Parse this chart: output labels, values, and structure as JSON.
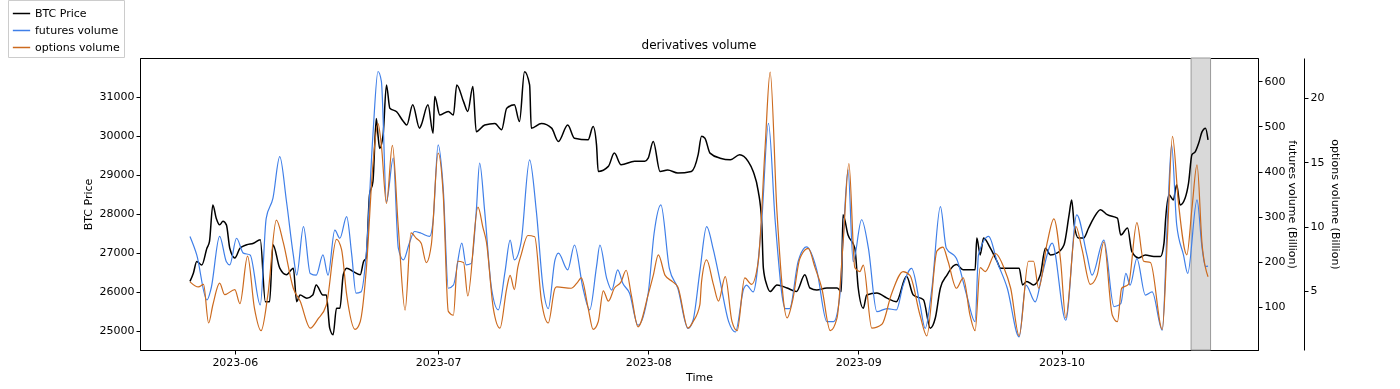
{
  "chart_data": {
    "type": "line",
    "title": "derivatives volume",
    "xlabel": "Time",
    "ylabel": "BTC Price",
    "y2label": "futures volume (Billion)",
    "y3label": "options volume (Billion)",
    "xlim": [
      "2023-05-18",
      "2023-10-30"
    ],
    "xticks": [
      "2023-06",
      "2023-07",
      "2023-08",
      "2023-09",
      "2023-10"
    ],
    "ylim": [
      24500,
      31990
    ],
    "yticks": [
      25000,
      26000,
      27000,
      28000,
      29000,
      30000,
      31000
    ],
    "y2lim": [
      4,
      652
    ],
    "y2ticks": [
      100,
      200,
      300,
      400,
      500,
      600
    ],
    "y3lim": [
      0.4,
      23.1
    ],
    "y3ticks": [
      5,
      10,
      15,
      20
    ],
    "legend": "top left",
    "grid": false,
    "bands": [
      {
        "axis": "x",
        "from": "2023-10-20T03:00",
        "to": "2023-10-23T00:00",
        "color": "#d9d9d9"
      }
    ],
    "series": [
      {
        "name": "BTC Price",
        "color": "#000000",
        "axis": "y",
        "x": [
          "2023-05-25T09:00",
          "2023-05-25T21:00",
          "2023-05-26T09:00",
          "2023-05-27T03:00",
          "2023-05-27T21:00",
          "2023-05-28T06:00",
          "2023-05-28T18:00",
          "2023-05-29T06:00",
          "2023-05-29T18:00",
          "2023-05-30T06:00",
          "2023-05-30T18:00",
          "2023-05-31T06:00",
          "2023-06-01T00:00",
          "2023-06-01T18:00",
          "2023-06-02T18:00",
          "2023-06-03T18:00",
          "2023-06-04T18:00",
          "2023-06-05T12:00",
          "2023-06-06T03:00",
          "2023-06-06T15:00",
          "2023-06-07T15:00",
          "2023-06-08T15:00",
          "2023-06-09T15:00",
          "2023-06-10T03:00",
          "2023-06-10T15:00",
          "2023-06-11T15:00",
          "2023-06-12T12:00",
          "2023-06-13T00:00",
          "2023-06-14T00:00",
          "2023-06-14T12:00",
          "2023-06-15T00:00",
          "2023-06-15T12:00",
          "2023-06-16T00:00",
          "2023-06-16T12:00",
          "2023-06-17T00:00",
          "2023-06-17T12:00",
          "2023-06-18T12:00",
          "2023-06-19T12:00",
          "2023-06-20T00:00",
          "2023-06-20T09:00",
          "2023-06-20T21:00",
          "2023-06-21T09:00",
          "2023-06-21T21:00",
          "2023-06-22T03:00",
          "2023-06-22T09:00",
          "2023-06-22T21:00",
          "2023-06-23T09:00",
          "2023-06-23T21:00",
          "2023-06-24T21:00",
          "2023-06-25T21:00",
          "2023-06-26T09:00",
          "2023-06-27T06:00",
          "2023-06-28T06:00",
          "2023-06-28T12:00",
          "2023-06-29T12:00",
          "2023-06-30T06:00",
          "2023-06-30T12:00",
          "2023-07-01T06:00",
          "2023-07-02T12:00",
          "2023-07-03T06:00",
          "2023-07-03T18:00",
          "2023-07-04T18:00",
          "2023-07-05T09:00",
          "2023-07-06T03:00",
          "2023-07-06T15:00",
          "2023-07-07T21:00",
          "2023-07-09T09:00",
          "2023-07-10T09:00",
          "2023-07-11T03:00",
          "2023-07-12T06:00",
          "2023-07-13T00:00",
          "2023-07-13T18:00",
          "2023-07-14T12:00",
          "2023-07-14T18:00",
          "2023-07-16T06:00",
          "2023-07-17T18:00",
          "2023-07-18T18:00",
          "2023-07-20T03:00",
          "2023-07-21T03:00",
          "2023-07-23T03:00",
          "2023-07-23T21:00",
          "2023-07-24T09:00",
          "2023-07-24T15:00",
          "2023-07-26T03:00",
          "2023-07-27T00:00",
          "2023-07-28T00:00",
          "2023-07-30T00:00",
          "2023-07-31T12:00",
          "2023-08-01T00:00",
          "2023-08-01T18:00",
          "2023-08-02T18:00",
          "2023-08-03T21:00",
          "2023-08-05T09:00",
          "2023-08-07T09:00",
          "2023-08-08T09:00",
          "2023-08-08T21:00",
          "2023-08-09T09:00",
          "2023-08-10T03:00",
          "2023-08-11T15:00",
          "2023-08-13T03:00",
          "2023-08-14T12:00",
          "2023-08-15T18:00",
          "2023-08-16T12:00",
          "2023-08-17T06:00",
          "2023-08-17T18:00",
          "2023-08-18T00:00",
          "2023-08-18T12:00",
          "2023-08-19T00:00",
          "2023-08-20T00:00",
          "2023-08-21T12:00",
          "2023-08-22T21:00",
          "2023-08-24T03:00",
          "2023-08-24T21:00",
          "2023-08-25T21:00",
          "2023-08-27T09:00",
          "2023-08-28T21:00",
          "2023-08-29T12:00",
          "2023-08-29T18:00",
          "2023-08-30T12:00",
          "2023-08-31T12:00",
          "2023-09-01T00:00",
          "2023-09-01T18:00",
          "2023-09-02T06:00",
          "2023-09-03T18:00",
          "2023-09-05T06:00",
          "2023-09-06T15:00",
          "2023-09-08T03:00",
          "2023-09-09T03:00",
          "2023-09-10T15:00",
          "2023-09-11T15:00",
          "2023-09-12T09:00",
          "2023-09-13T03:00",
          "2023-09-14T03:00",
          "2023-09-14T18:00",
          "2023-09-15T12:00",
          "2023-09-16T12:00",
          "2023-09-18T06:00",
          "2023-09-18T12:00",
          "2023-09-19T00:00",
          "2023-09-19T12:00",
          "2023-09-20T12:00",
          "2023-09-21T12:00",
          "2023-09-22T00:00",
          "2023-09-23T12:00",
          "2023-09-24T18:00",
          "2023-09-25T06:00",
          "2023-09-25T21:00",
          "2023-09-26T21:00",
          "2023-09-27T21:00",
          "2023-09-28T15:00",
          "2023-09-29T09:00",
          "2023-09-30T09:00",
          "2023-10-01T09:00",
          "2023-10-02T03:00",
          "2023-10-02T12:00",
          "2023-10-02T21:00",
          "2023-10-03T12:00",
          "2023-10-04T06:00",
          "2023-10-05T00:00",
          "2023-10-05T18:00",
          "2023-10-06T18:00",
          "2023-10-07T18:00",
          "2023-10-09T06:00",
          "2023-10-09T18:00",
          "2023-10-10T18:00",
          "2023-10-11T09:00",
          "2023-10-12T09:00",
          "2023-10-13T09:00",
          "2023-10-14T15:00",
          "2023-10-15T15:00",
          "2023-10-16T03:00",
          "2023-10-16T09:00",
          "2023-10-16T21:00",
          "2023-10-17T12:00",
          "2023-10-18T00:00",
          "2023-10-18T12:00",
          "2023-10-19T06:00",
          "2023-10-19T18:00",
          "2023-10-20T06:00",
          "2023-10-20T18:00",
          "2023-10-21T06:00",
          "2023-10-21T18:00",
          "2023-10-22T06:00",
          "2023-10-22T15:00"
        ],
        "values": [
          26260,
          26470,
          26770,
          26680,
          27110,
          27280,
          28220,
          27880,
          27710,
          27800,
          27710,
          27110,
          26860,
          27110,
          27200,
          27240,
          27330,
          25740,
          25740,
          27200,
          26600,
          26430,
          26600,
          25740,
          25910,
          25830,
          25910,
          26170,
          25910,
          25910,
          25060,
          24890,
          25570,
          25570,
          26430,
          26600,
          26510,
          26430,
          26770,
          26860,
          28480,
          28820,
          30440,
          30010,
          29670,
          30010,
          31300,
          30700,
          30610,
          30360,
          30270,
          30790,
          30190,
          30270,
          30790,
          30060,
          31000,
          30530,
          30620,
          30530,
          31300,
          30870,
          30620,
          31260,
          30100,
          30270,
          30310,
          30150,
          30700,
          30790,
          30360,
          31640,
          31300,
          30190,
          30310,
          30190,
          29850,
          30270,
          29930,
          29890,
          30230,
          29760,
          29080,
          29210,
          29550,
          29250,
          29340,
          29340,
          29420,
          29850,
          29080,
          29120,
          29040,
          29080,
          29510,
          29980,
          29930,
          29550,
          29420,
          29380,
          29510,
          29340,
          29080,
          28570,
          27800,
          26600,
          26170,
          26000,
          26170,
          26090,
          26000,
          26430,
          26090,
          26040,
          26090,
          26090,
          26000,
          27970,
          27450,
          27110,
          26090,
          25570,
          25910,
          25960,
          25830,
          25740,
          26390,
          25910,
          25790,
          25060,
          25320,
          26090,
          26430,
          26600,
          26690,
          26560,
          26560,
          27370,
          26940,
          27370,
          27110,
          26770,
          26600,
          26600,
          26600,
          26170,
          26260,
          26170,
          26430,
          27110,
          26940,
          26990,
          27200,
          27970,
          28350,
          27710,
          27370,
          27370,
          27630,
          27880,
          28100,
          27970,
          27880,
          27450,
          27630,
          27030,
          26860,
          26940,
          26900,
          26900,
          27240,
          27880,
          28480,
          28350,
          28740,
          28220,
          28400,
          28780,
          29510,
          29590,
          29810,
          30100,
          30190,
          29890
        ]
      },
      {
        "name": "futures volume",
        "color": "#3f7fe8",
        "axis": "y2",
        "x": [
          "2023-05-25T09:00",
          "2023-05-26T09:00",
          "2023-05-27T21:00",
          "2023-05-28T12:00",
          "2023-05-29T18:00",
          "2023-05-30T18:00",
          "2023-05-31T06:00",
          "2023-06-01T06:00",
          "2023-06-02T06:00",
          "2023-06-03T06:00",
          "2023-06-04T18:00",
          "2023-06-05T15:00",
          "2023-06-06T15:00",
          "2023-06-07T15:00",
          "2023-06-08T15:00",
          "2023-06-09T15:00",
          "2023-06-10T03:00",
          "2023-06-11T03:00",
          "2023-06-12T03:00",
          "2023-06-13T00:00",
          "2023-06-14T00:00",
          "2023-06-14T18:00",
          "2023-06-15T18:00",
          "2023-06-16T12:00",
          "2023-06-17T12:00",
          "2023-06-18T06:00",
          "2023-06-18T21:00",
          "2023-06-19T15:00",
          "2023-06-20T09:00",
          "2023-06-21T09:00",
          "2023-06-22T03:00",
          "2023-06-22T15:00",
          "2023-06-23T09:00",
          "2023-06-24T09:00",
          "2023-06-25T03:00",
          "2023-06-25T21:00",
          "2023-06-26T18:00",
          "2023-06-27T12:00",
          "2023-06-28T12:00",
          "2023-06-29T18:00",
          "2023-06-30T06:00",
          "2023-07-01T00:00",
          "2023-07-01T18:00",
          "2023-07-02T12:00",
          "2023-07-03T06:00",
          "2023-07-04T12:00",
          "2023-07-05T03:00",
          "2023-07-05T21:00",
          "2023-07-06T15:00",
          "2023-07-07T03:00",
          "2023-07-07T21:00",
          "2023-07-08T21:00",
          "2023-07-09T21:00",
          "2023-07-10T21:00",
          "2023-07-11T15:00",
          "2023-07-12T06:00",
          "2023-07-13T06:00",
          "2023-07-14T12:00",
          "2023-07-15T12:00",
          "2023-07-16T12:00",
          "2023-07-17T06:00",
          "2023-07-18T06:00",
          "2023-07-18T18:00",
          "2023-07-20T03:00",
          "2023-07-21T03:00",
          "2023-07-22T09:00",
          "2023-07-23T09:00",
          "2023-07-24T09:00",
          "2023-07-24T21:00",
          "2023-07-25T21:00",
          "2023-07-26T15:00",
          "2023-07-27T12:00",
          "2023-07-28T06:00",
          "2023-07-29T06:00",
          "2023-07-30T12:00",
          "2023-08-01T00:00",
          "2023-08-01T21:00",
          "2023-08-02T21:00",
          "2023-08-04T03:00",
          "2023-08-05T09:00",
          "2023-08-06T21:00",
          "2023-08-07T15:00",
          "2023-08-08T15:00",
          "2023-08-09T15:00",
          "2023-08-10T15:00",
          "2023-08-11T15:00",
          "2023-08-12T21:00",
          "2023-08-13T21:00",
          "2023-08-15T03:00",
          "2023-08-15T12:00",
          "2023-08-16T12:00",
          "2023-08-17T18:00",
          "2023-08-18T18:00",
          "2023-08-19T18:00",
          "2023-08-21T06:00",
          "2023-08-21T21:00",
          "2023-08-23T03:00",
          "2023-08-24T09:00",
          "2023-08-25T21:00",
          "2023-08-27T09:00",
          "2023-08-28T09:00",
          "2023-08-29T06:00",
          "2023-08-29T18:00",
          "2023-08-30T12:00",
          "2023-08-31T06:00",
          "2023-09-01T12:00",
          "2023-09-02T12:00",
          "2023-09-03T18:00",
          "2023-09-05T06:00",
          "2023-09-06T15:00",
          "2023-09-07T15:00",
          "2023-09-08T21:00",
          "2023-09-10T03:00",
          "2023-09-10T21:00",
          "2023-09-11T21:00",
          "2023-09-13T03:00",
          "2023-09-14T00:00",
          "2023-09-15T12:00",
          "2023-09-17T00:00",
          "2023-09-18T06:00",
          "2023-09-18T18:00",
          "2023-09-20T06:00",
          "2023-09-21T12:00",
          "2023-09-23T00:00",
          "2023-09-24T18:00",
          "2023-09-25T18:00",
          "2023-09-27T03:00",
          "2023-09-28T03:00",
          "2023-09-29T15:00",
          "2023-10-01T15:00",
          "2023-10-03T06:00",
          "2023-10-04T18:00",
          "2023-10-05T12:00",
          "2023-10-07T06:00",
          "2023-10-08T18:00",
          "2023-10-09T18:00",
          "2023-10-10T12:00",
          "2023-10-11T03:00",
          "2023-10-12T03:00",
          "2023-10-13T09:00",
          "2023-10-14T09:00",
          "2023-10-15T21:00",
          "2023-10-16T15:00",
          "2023-10-17T06:00",
          "2023-10-18T00:00",
          "2023-10-19T00:00",
          "2023-10-19T15:00",
          "2023-10-21T00:00",
          "2023-10-21T18:00",
          "2023-10-22T06:00",
          "2023-10-22T15:00"
        ],
        "values": [
          256,
          215,
          115,
          141,
          256,
          200,
          193,
          252,
          219,
          215,
          104,
          296,
          341,
          433,
          333,
          215,
          170,
          278,
          174,
          170,
          215,
          170,
          270,
          252,
          300,
          215,
          130,
          133,
          215,
          481,
          622,
          600,
          333,
          430,
          230,
          204,
          241,
          267,
          263,
          256,
          289,
          459,
          363,
          141,
          148,
          241,
          193,
          196,
          311,
          419,
          311,
          141,
          93,
          178,
          248,
          204,
          244,
          426,
          311,
          141,
          96,
          204,
          219,
          182,
          237,
          141,
          93,
          189,
          237,
          163,
          137,
          182,
          152,
          130,
          59,
          130,
          263,
          326,
          185,
          141,
          52,
          70,
          178,
          278,
          226,
          156,
          67,
          44,
          141,
          148,
          133,
          289,
          507,
          289,
          96,
          96,
          200,
          233,
          182,
          67,
          67,
          119,
          244,
          404,
          200,
          293,
          230,
          89,
          96,
          93,
          148,
          185,
          104,
          52,
          141,
          322,
          230,
          207,
          126,
          67,
          215,
          256,
          200,
          141,
          33,
          148,
          111,
          170,
          241,
          70,
          304,
          215,
          170,
          248,
          100,
          107,
          174,
          148,
          207,
          126,
          133,
          48,
          289,
          459,
          282,
          215,
          174,
          337,
          230,
          189,
          190
        ]
      },
      {
        "name": "options volume",
        "color": "#cc6a1e",
        "axis": "y3",
        "x": [
          "2023-05-25T09:00",
          "2023-05-26T15:00",
          "2023-05-27T09:00",
          "2023-05-28T03:00",
          "2023-05-28T18:00",
          "2023-05-29T18:00",
          "2023-05-30T12:00",
          "2023-06-01T00:00",
          "2023-06-01T18:00",
          "2023-06-02T21:00",
          "2023-06-03T21:00",
          "2023-06-04T21:00",
          "2023-06-05T21:00",
          "2023-06-07T03:00",
          "2023-06-08T03:00",
          "2023-06-09T15:00",
          "2023-06-10T15:00",
          "2023-06-12T03:00",
          "2023-06-13T06:00",
          "2023-06-14T12:00",
          "2023-06-16T00:00",
          "2023-06-16T18:00",
          "2023-06-17T12:00",
          "2023-06-18T18:00",
          "2023-06-19T12:00",
          "2023-06-20T09:00",
          "2023-06-21T09:00",
          "2023-06-22T03:00",
          "2023-06-22T15:00",
          "2023-06-23T09:00",
          "2023-06-24T06:00",
          "2023-06-25T03:00",
          "2023-06-26T03:00",
          "2023-06-27T00:00",
          "2023-06-27T18:00",
          "2023-06-28T12:00",
          "2023-06-29T06:00",
          "2023-06-30T00:00",
          "2023-07-01T00:00",
          "2023-07-01T18:00",
          "2023-07-02T12:00",
          "2023-07-03T06:00",
          "2023-07-03T21:00",
          "2023-07-04T18:00",
          "2023-07-05T09:00",
          "2023-07-06T21:00",
          "2023-07-07T15:00",
          "2023-07-08T03:00",
          "2023-07-09T03:00",
          "2023-07-10T03:00",
          "2023-07-11T03:00",
          "2023-07-11T15:00",
          "2023-07-12T06:00",
          "2023-07-12T18:00",
          "2023-07-13T06:00",
          "2023-07-14T06:00",
          "2023-07-15T06:00",
          "2023-07-16T06:00",
          "2023-07-17T06:00",
          "2023-07-18T06:00",
          "2023-07-18T12:00",
          "2023-07-20T15:00",
          "2023-07-21T15:00",
          "2023-07-22T03:00",
          "2023-07-23T03:00",
          "2023-07-23T21:00",
          "2023-07-24T15:00",
          "2023-07-25T09:00",
          "2023-07-26T03:00",
          "2023-07-27T00:00",
          "2023-07-28T00:00",
          "2023-07-28T18:00",
          "2023-07-29T12:00",
          "2023-07-30T12:00",
          "2023-08-01T00:00",
          "2023-08-01T18:00",
          "2023-08-02T12:00",
          "2023-08-03T12:00",
          "2023-08-04T15:00",
          "2023-08-05T09:00",
          "2023-08-06T21:00",
          "2023-08-07T15:00",
          "2023-08-08T15:00",
          "2023-08-08T21:00",
          "2023-08-09T15:00",
          "2023-08-10T15:00",
          "2023-08-11T09:00",
          "2023-08-12T09:00",
          "2023-08-13T09:00",
          "2023-08-14T03:00",
          "2023-08-15T06:00",
          "2023-08-16T06:00",
          "2023-08-17T06:00",
          "2023-08-18T06:00",
          "2023-08-19T00:00",
          "2023-08-20T00:00",
          "2023-08-21T12:00",
          "2023-08-22T09:00",
          "2023-08-23T09:00",
          "2023-08-24T15:00",
          "2023-08-25T15:00",
          "2023-08-26T15:00",
          "2023-08-27T21:00",
          "2023-08-28T21:00",
          "2023-08-29T18:00",
          "2023-08-30T15:00",
          "2023-08-31T12:00",
          "2023-09-01T06:00",
          "2023-09-01T18:00",
          "2023-09-03T00:00",
          "2023-09-04T12:00",
          "2023-09-05T21:00",
          "2023-09-07T15:00",
          "2023-09-08T15:00",
          "2023-09-10T03:00",
          "2023-09-11T03:00",
          "2023-09-12T15:00",
          "2023-09-13T12:00",
          "2023-09-14T06:00",
          "2023-09-15T12:00",
          "2023-09-16T12:00",
          "2023-09-17T12:00",
          "2023-09-18T06:00",
          "2023-09-19T00:00",
          "2023-09-19T18:00",
          "2023-09-21T06:00",
          "2023-09-22T12:00",
          "2023-09-23T12:00",
          "2023-09-24T18:00",
          "2023-09-26T03:00",
          "2023-09-26T21:00",
          "2023-09-27T15:00",
          "2023-09-28T21:00",
          "2023-09-29T21:00",
          "2023-09-30T21:00",
          "2023-10-01T15:00",
          "2023-10-03T03:00",
          "2023-10-04T00:00",
          "2023-10-05T06:00",
          "2023-10-06T06:00",
          "2023-10-07T06:00",
          "2023-10-08T12:00",
          "2023-10-09T06:00",
          "2023-10-09T21:00",
          "2023-10-10T21:00",
          "2023-10-12T03:00",
          "2023-10-13T03:00",
          "2023-10-14T03:00",
          "2023-10-15T21:00",
          "2023-10-16T15:00",
          "2023-10-17T09:00",
          "2023-10-18T06:00",
          "2023-10-19T12:00",
          "2023-10-20T06:00",
          "2023-10-21T00:00",
          "2023-10-21T18:00",
          "2023-10-22T15:00"
        ],
        "values": [
          5.7,
          5.3,
          5.5,
          2.5,
          3.9,
          5.6,
          4.7,
          5.1,
          4.0,
          7.7,
          3.7,
          1.9,
          4.7,
          10.5,
          8.8,
          5.2,
          4.2,
          2.1,
          2.8,
          3.9,
          9.0,
          8.2,
          4.7,
          2.0,
          2.6,
          6.5,
          14.8,
          18.0,
          16.3,
          11.8,
          16.3,
          9.9,
          3.5,
          9.5,
          9.1,
          8.7,
          7.2,
          8.6,
          15.7,
          12.5,
          3.4,
          3.1,
          7.3,
          7.2,
          4.6,
          11.5,
          9.9,
          8.8,
          3.7,
          2.1,
          5.2,
          6.2,
          5.1,
          6.8,
          7.8,
          9.3,
          9.2,
          4.2,
          2.5,
          5.2,
          5.3,
          5.2,
          5.7,
          6.0,
          3.7,
          2.0,
          2.6,
          5.0,
          4.2,
          5.2,
          5.7,
          6.6,
          4.7,
          2.2,
          4.7,
          6.2,
          7.8,
          6.2,
          5.7,
          5.3,
          2.1,
          2.6,
          3.9,
          5.7,
          7.4,
          5.5,
          4.2,
          6.1,
          2.6,
          1.9,
          6.0,
          5.5,
          7.3,
          16.1,
          22.0,
          11.2,
          2.9,
          4.4,
          7.5,
          8.3,
          6.8,
          5.2,
          1.9,
          2.9,
          8.6,
          14.9,
          6.8,
          6.5,
          7.0,
          2.1,
          2.4,
          4.7,
          6.5,
          6.2,
          3.1,
          1.5,
          8.1,
          8.4,
          7.3,
          5.2,
          6.0,
          3.1,
          1.9,
          6.8,
          6.5,
          7.9,
          6.8,
          5.2,
          1.5,
          7.3,
          7.3,
          5.2,
          8.7,
          10.6,
          7.3,
          2.9,
          10.0,
          8.3,
          5.5,
          6.2,
          8.8,
          3.1,
          2.6,
          5.2,
          5.5,
          10.3,
          7.3,
          7.2,
          2.0,
          9.1,
          17.0,
          11.9,
          7.8,
          11.4,
          14.8,
          8.6,
          6.1
        ]
      }
    ]
  }
}
